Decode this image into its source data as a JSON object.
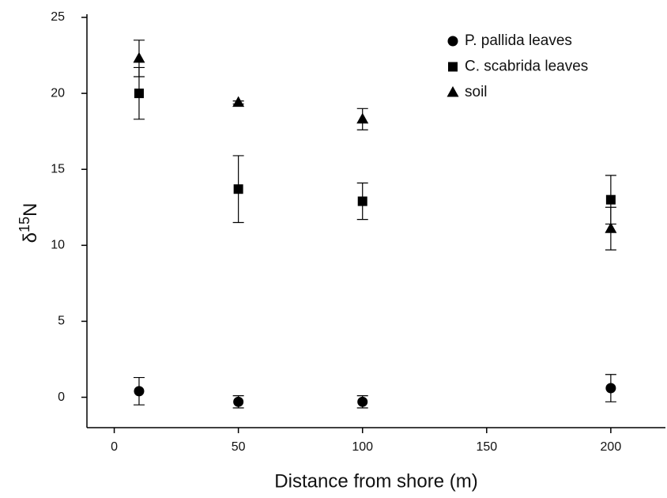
{
  "chart_data": {
    "type": "scatter",
    "xlabel": "Distance from shore (m)",
    "ylabel": [
      "δ",
      "15",
      "N"
    ],
    "x": [
      10,
      50,
      100,
      200
    ],
    "xlim": [
      -11,
      222
    ],
    "xticks": [
      0,
      50,
      100,
      150,
      200
    ],
    "ylim": [
      -2,
      25
    ],
    "yticks": [
      0,
      5,
      10,
      15,
      20,
      25
    ],
    "legend": "upper right",
    "series": [
      {
        "name": "P. pallida leaves",
        "marker": "circle",
        "color": "#000000",
        "values": [
          0.4,
          -0.3,
          -0.3,
          0.6
        ],
        "errors": [
          0.9,
          0.4,
          0.4,
          0.9
        ]
      },
      {
        "name": "C. scabrida leaves",
        "marker": "square",
        "color": "#000000",
        "values": [
          20.0,
          13.7,
          12.9,
          13.0
        ],
        "errors": [
          1.7,
          2.2,
          1.2,
          1.6
        ]
      },
      {
        "name": "soil",
        "marker": "triangle",
        "color": "#000000",
        "values": [
          22.3,
          19.4,
          18.3,
          11.1
        ],
        "errors": [
          1.2,
          0.1,
          0.7,
          1.4
        ]
      }
    ]
  }
}
